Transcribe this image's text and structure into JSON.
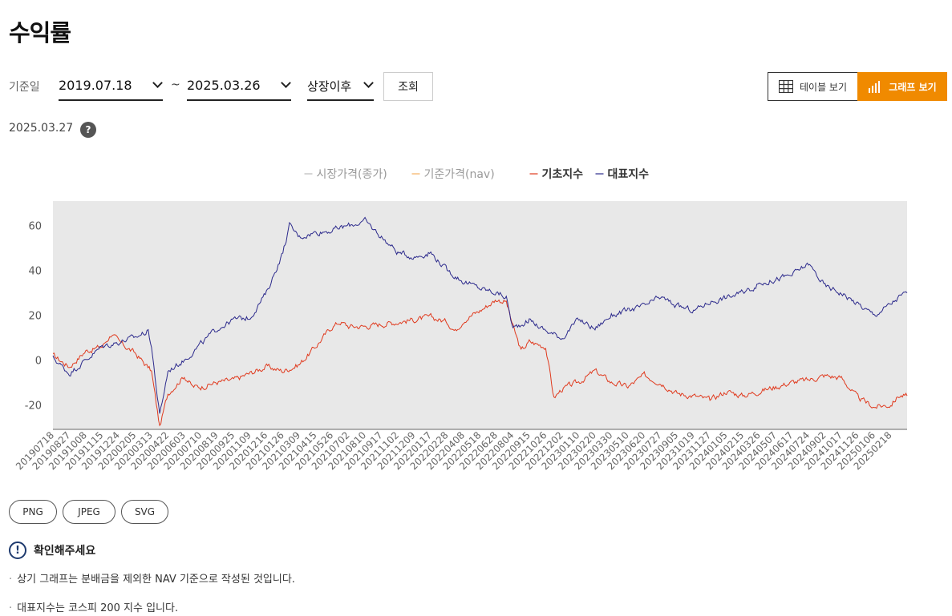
{
  "page": {
    "title": "수익률"
  },
  "filter": {
    "label": "기준일",
    "start_date": "2019.07.18",
    "separator": "~",
    "end_date": "2025.03.26",
    "period": "상장이후",
    "query_button": "조회"
  },
  "view_toggle": {
    "table_label": "테이블 보기",
    "graph_label": "그래프 보기",
    "active": "graph",
    "accent_color": "#f08a00"
  },
  "as_of_date": "2025.03.27",
  "help_icon": "?",
  "chart_data": {
    "type": "line",
    "legend": [
      {
        "name": "시장가격(종가)",
        "color": "#bbbbbb",
        "visible": false
      },
      {
        "name": "기준가격(nav)",
        "color": "#f5b060",
        "visible": false
      },
      {
        "name": "기초지수",
        "color": "#e03a1e",
        "visible": true
      },
      {
        "name": "대표지수",
        "color": "#2c2a8c",
        "visible": true
      }
    ],
    "legend_placement": "top-center",
    "ylim": [
      -31,
      71
    ],
    "yticks": [
      60,
      40,
      20,
      0,
      -20
    ],
    "grid": false,
    "background": "#e8e8e8",
    "x_labels": [
      "20190718",
      "20190827",
      "20191008",
      "20191115",
      "20191224",
      "20200205",
      "20200313",
      "20200422",
      "20200603",
      "20200710",
      "20200819",
      "20200925",
      "20201109",
      "20201216",
      "20210126",
      "20210309",
      "20210415",
      "20210526",
      "20210702",
      "20210810",
      "20210917",
      "20211102",
      "20211209",
      "20220117",
      "20220228",
      "20220408",
      "20220518",
      "20220628",
      "20220804",
      "20220915",
      "20221026",
      "20221202",
      "20230110",
      "20230220",
      "20230330",
      "20230510",
      "20230620",
      "20230727",
      "20230905",
      "20231019",
      "20231127",
      "20240105",
      "20240215",
      "20240326",
      "20240507",
      "20240617",
      "20240724",
      "20240902",
      "20241017",
      "20241126",
      "20250106",
      "20250218"
    ],
    "series": [
      {
        "name": "기초지수",
        "color": "#e03a1e",
        "keypoints": [
          [
            0,
            2
          ],
          [
            1,
            -3
          ],
          [
            2,
            4
          ],
          [
            3,
            6
          ],
          [
            3.6,
            12
          ],
          [
            4,
            8
          ],
          [
            5,
            3
          ],
          [
            6,
            -5
          ],
          [
            6.5,
            -30
          ],
          [
            7,
            -15
          ],
          [
            8,
            -7
          ],
          [
            8.5,
            -12
          ],
          [
            9,
            -12
          ],
          [
            10,
            -10
          ],
          [
            11,
            -9
          ],
          [
            12,
            -6
          ],
          [
            13,
            -3
          ],
          [
            14,
            -5
          ],
          [
            15,
            -2
          ],
          [
            16,
            6
          ],
          [
            17,
            15
          ],
          [
            17.5,
            17
          ],
          [
            18,
            15
          ],
          [
            19,
            15
          ],
          [
            20,
            16
          ],
          [
            21,
            17
          ],
          [
            22,
            18
          ],
          [
            23,
            19
          ],
          [
            24,
            17
          ],
          [
            24.5,
            13
          ],
          [
            25,
            18
          ],
          [
            26,
            22
          ],
          [
            27,
            27
          ],
          [
            27.6,
            26
          ],
          [
            28,
            15
          ],
          [
            28.5,
            4
          ],
          [
            29,
            8
          ],
          [
            30,
            6
          ],
          [
            30.5,
            -17
          ],
          [
            31,
            -13
          ],
          [
            32,
            -10
          ],
          [
            33,
            -5
          ],
          [
            34,
            -10
          ],
          [
            35,
            -12
          ],
          [
            36,
            -7
          ],
          [
            37,
            -10
          ],
          [
            38,
            -15
          ],
          [
            39,
            -16
          ],
          [
            40,
            -18
          ],
          [
            41,
            -14
          ],
          [
            42,
            -16
          ],
          [
            43,
            -14
          ],
          [
            44,
            -12
          ],
          [
            45,
            -10
          ],
          [
            46,
            -9
          ],
          [
            47,
            -7
          ],
          [
            48,
            -8
          ],
          [
            49,
            -17
          ],
          [
            50,
            -21
          ],
          [
            51,
            -20
          ],
          [
            51.5,
            -16
          ],
          [
            52,
            -16
          ]
        ]
      },
      {
        "name": "대표지수",
        "color": "#2c2a8c",
        "keypoints": [
          [
            0,
            1
          ],
          [
            1,
            -6
          ],
          [
            2,
            0
          ],
          [
            3,
            6
          ],
          [
            4,
            8
          ],
          [
            5,
            10
          ],
          [
            5.8,
            13
          ],
          [
            6,
            6
          ],
          [
            6.5,
            -25
          ],
          [
            7,
            -5
          ],
          [
            8,
            0
          ],
          [
            9,
            7
          ],
          [
            10,
            14
          ],
          [
            11,
            18
          ],
          [
            12,
            19
          ],
          [
            13,
            30
          ],
          [
            14,
            48
          ],
          [
            14.4,
            60
          ],
          [
            15,
            55
          ],
          [
            16,
            57
          ],
          [
            17,
            58
          ],
          [
            18,
            60
          ],
          [
            19,
            62
          ],
          [
            20,
            55
          ],
          [
            21,
            48
          ],
          [
            22,
            46
          ],
          [
            23,
            48
          ],
          [
            24,
            40
          ],
          [
            25,
            35
          ],
          [
            26,
            32
          ],
          [
            27,
            30
          ],
          [
            27.6,
            28
          ],
          [
            28,
            14
          ],
          [
            29,
            18
          ],
          [
            30,
            13
          ],
          [
            31,
            10
          ],
          [
            32,
            18
          ],
          [
            33,
            14
          ],
          [
            34,
            20
          ],
          [
            35,
            22
          ],
          [
            36,
            24
          ],
          [
            37,
            28
          ],
          [
            38,
            24
          ],
          [
            39,
            22
          ],
          [
            40,
            26
          ],
          [
            41,
            28
          ],
          [
            42,
            30
          ],
          [
            43,
            34
          ],
          [
            44,
            36
          ],
          [
            45,
            38
          ],
          [
            46,
            43
          ],
          [
            47,
            33
          ],
          [
            48,
            30
          ],
          [
            49,
            25
          ],
          [
            50,
            20
          ],
          [
            51,
            25
          ],
          [
            51.5,
            28
          ],
          [
            52,
            30
          ]
        ]
      }
    ]
  },
  "export": {
    "png": "PNG",
    "jpeg": "JPEG",
    "svg": "SVG"
  },
  "notice": {
    "icon": "!",
    "title": "확인해주세요",
    "items": [
      "상기 그래프는 분배금을 제외한 NAV 기준으로 작성된 것입니다.",
      "대표지수는 코스피 200 지수 입니다."
    ]
  }
}
